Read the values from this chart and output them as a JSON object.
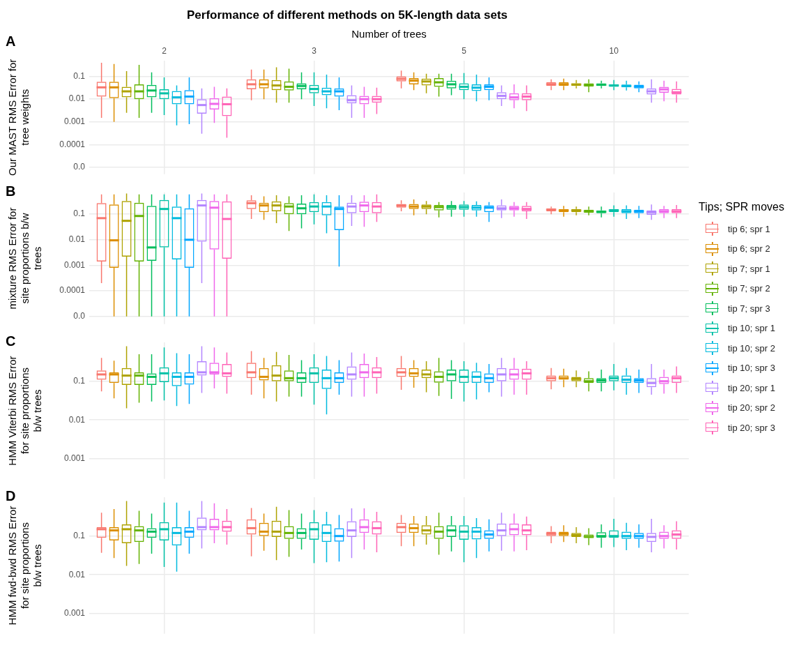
{
  "chart_data": [
    {
      "type": "box",
      "title": "Performance of different methods on 5K-length data sets",
      "xlabel": "Number of trees",
      "ylabel": "Our MAST RMS Error for tree weights",
      "annotations": [
        "A"
      ],
      "categories": [
        "2",
        "3",
        "5",
        "10"
      ],
      "log": "y",
      "grid": true,
      "ylim": [
        5e-06,
        0.5
      ],
      "yticks": [
        {
          "value": 1e-05,
          "label": "0.0"
        },
        0.0001,
        0.001,
        0.01,
        0.1
      ],
      "series": [
        {
          "color": "#f8766d",
          "boxes": [
            {
              "low": 0.0015,
              "q1": 0.013,
              "median": 0.033,
              "q3": 0.058,
              "high": 0.4
            },
            {
              "low": 0.009,
              "q1": 0.027,
              "median": 0.045,
              "q3": 0.075,
              "high": 0.2
            },
            {
              "low": 0.03,
              "q1": 0.06,
              "median": 0.078,
              "q3": 0.1,
              "high": 0.18
            },
            {
              "low": 0.025,
              "q1": 0.038,
              "median": 0.045,
              "q3": 0.055,
              "high": 0.075
            }
          ]
        },
        {
          "color": "#db8e00",
          "boxes": [
            {
              "low": 0.001,
              "q1": 0.011,
              "median": 0.033,
              "q3": 0.058,
              "high": 0.35
            },
            {
              "low": 0.01,
              "q1": 0.03,
              "median": 0.045,
              "q3": 0.075,
              "high": 0.2
            },
            {
              "low": 0.025,
              "q1": 0.045,
              "median": 0.065,
              "q3": 0.085,
              "high": 0.15
            },
            {
              "low": 0.025,
              "q1": 0.038,
              "median": 0.045,
              "q3": 0.055,
              "high": 0.08
            }
          ]
        },
        {
          "color": "#aea200",
          "boxes": [
            {
              "low": 0.0025,
              "q1": 0.012,
              "median": 0.022,
              "q3": 0.035,
              "high": 0.17
            },
            {
              "low": 0.007,
              "q1": 0.025,
              "median": 0.04,
              "q3": 0.07,
              "high": 0.25
            },
            {
              "low": 0.018,
              "q1": 0.04,
              "median": 0.06,
              "q3": 0.08,
              "high": 0.13
            },
            {
              "low": 0.03,
              "q1": 0.038,
              "median": 0.044,
              "q3": 0.05,
              "high": 0.07
            }
          ]
        },
        {
          "color": "#64b200",
          "boxes": [
            {
              "low": 0.0015,
              "q1": 0.01,
              "median": 0.022,
              "q3": 0.045,
              "high": 0.32
            },
            {
              "low": 0.007,
              "q1": 0.024,
              "median": 0.035,
              "q3": 0.06,
              "high": 0.22
            },
            {
              "low": 0.013,
              "q1": 0.035,
              "median": 0.055,
              "q3": 0.085,
              "high": 0.13
            },
            {
              "low": 0.02,
              "q1": 0.036,
              "median": 0.042,
              "q3": 0.05,
              "high": 0.075
            }
          ]
        },
        {
          "color": "#00bd5c",
          "boxes": [
            {
              "low": 0.0025,
              "q1": 0.012,
              "median": 0.024,
              "q3": 0.042,
              "high": 0.15
            },
            {
              "low": 0.01,
              "q1": 0.027,
              "median": 0.038,
              "q3": 0.05,
              "high": 0.15
            },
            {
              "low": 0.015,
              "q1": 0.03,
              "median": 0.045,
              "q3": 0.065,
              "high": 0.13
            },
            {
              "low": 0.03,
              "q1": 0.038,
              "median": 0.043,
              "q3": 0.05,
              "high": 0.065
            }
          ]
        },
        {
          "color": "#00c1a7",
          "boxes": [
            {
              "low": 0.002,
              "q1": 0.01,
              "median": 0.018,
              "q3": 0.027,
              "high": 0.09
            },
            {
              "low": 0.005,
              "q1": 0.018,
              "median": 0.028,
              "q3": 0.042,
              "high": 0.15
            },
            {
              "low": 0.01,
              "q1": 0.025,
              "median": 0.035,
              "q3": 0.05,
              "high": 0.14
            },
            {
              "low": 0.025,
              "q1": 0.035,
              "median": 0.04,
              "q3": 0.045,
              "high": 0.07
            }
          ]
        },
        {
          "color": "#00bade",
          "boxes": [
            {
              "low": 0.0007,
              "q1": 0.006,
              "median": 0.012,
              "q3": 0.023,
              "high": 0.04
            },
            {
              "low": 0.004,
              "q1": 0.015,
              "median": 0.022,
              "q3": 0.032,
              "high": 0.12
            },
            {
              "low": 0.008,
              "q1": 0.023,
              "median": 0.032,
              "q3": 0.045,
              "high": 0.12
            },
            {
              "low": 0.024,
              "q1": 0.033,
              "median": 0.038,
              "q3": 0.044,
              "high": 0.065
            }
          ]
        },
        {
          "color": "#00a6ff",
          "boxes": [
            {
              "low": 0.0008,
              "q1": 0.006,
              "median": 0.013,
              "q3": 0.025,
              "high": 0.09
            },
            {
              "low": 0.0033,
              "q1": 0.013,
              "median": 0.022,
              "q3": 0.03,
              "high": 0.09
            },
            {
              "low": 0.009,
              "q1": 0.025,
              "median": 0.035,
              "q3": 0.045,
              "high": 0.09
            },
            {
              "low": 0.02,
              "q1": 0.03,
              "median": 0.036,
              "q3": 0.043,
              "high": 0.06
            }
          ]
        },
        {
          "color": "#b385ff",
          "boxes": [
            {
              "low": 0.0003,
              "q1": 0.0023,
              "median": 0.0055,
              "q3": 0.01,
              "high": 0.03
            },
            {
              "low": 0.0015,
              "q1": 0.0065,
              "median": 0.009,
              "q3": 0.015,
              "high": 0.04
            },
            {
              "low": 0.005,
              "q1": 0.01,
              "median": 0.014,
              "q3": 0.02,
              "high": 0.04
            },
            {
              "low": 0.007,
              "q1": 0.016,
              "median": 0.022,
              "q3": 0.03,
              "high": 0.075
            }
          ]
        },
        {
          "color": "#ef67eb",
          "boxes": [
            {
              "low": 0.0009,
              "q1": 0.0035,
              "median": 0.0062,
              "q3": 0.011,
              "high": 0.035
            },
            {
              "low": 0.0015,
              "q1": 0.006,
              "median": 0.01,
              "q3": 0.014,
              "high": 0.035
            },
            {
              "low": 0.004,
              "q1": 0.009,
              "median": 0.012,
              "q3": 0.018,
              "high": 0.045
            },
            {
              "low": 0.008,
              "q1": 0.019,
              "median": 0.027,
              "q3": 0.035,
              "high": 0.065
            }
          ]
        },
        {
          "color": "#ff63b6",
          "boxes": [
            {
              "low": 0.0002,
              "q1": 0.0018,
              "median": 0.006,
              "q3": 0.013,
              "high": 0.03
            },
            {
              "low": 0.0022,
              "q1": 0.007,
              "median": 0.01,
              "q3": 0.014,
              "high": 0.032
            },
            {
              "low": 0.003,
              "q1": 0.009,
              "median": 0.013,
              "q3": 0.018,
              "high": 0.04
            },
            {
              "low": 0.007,
              "q1": 0.016,
              "median": 0.02,
              "q3": 0.028,
              "high": 0.06
            }
          ]
        }
      ],
      "tick_labels": true
    },
    {
      "type": "box",
      "ylabel": "mixture RMS Error for site proportions b/w trees",
      "annotations": [
        "B"
      ],
      "categories": [
        "2",
        "3",
        "5",
        "10"
      ],
      "log": "y",
      "grid": true,
      "legend": "right",
      "legend_title": "Tips; SPR moves",
      "tick_labels": "y",
      "ylim": [
        5e-06,
        0.7
      ],
      "yticks": [
        {
          "value": 1e-05,
          "label": "0.0"
        },
        0.0001,
        0.001,
        0.01,
        0.1
      ],
      "series": [
        {
          "name": "tip 6; spr 1",
          "color": "#f8766d",
          "boxes": [
            {
              "low": 0.0002,
              "q1": 0.0014,
              "median": 0.07,
              "q3": 0.27,
              "high": 0.6
            },
            {
              "low": 0.065,
              "q1": 0.16,
              "median": 0.27,
              "q3": 0.35,
              "high": 0.55
            },
            {
              "low": 0.13,
              "q1": 0.18,
              "median": 0.22,
              "q3": 0.25,
              "high": 0.35
            },
            {
              "low": 0.1,
              "q1": 0.13,
              "median": 0.15,
              "q3": 0.17,
              "high": 0.2
            }
          ]
        },
        {
          "name": "tip 6; spr 2",
          "color": "#db8e00",
          "boxes": [
            {
              "low": 1e-05,
              "q1": 0.0008,
              "median": 0.0095,
              "q3": 0.24,
              "high": 0.6
            },
            {
              "low": 0.06,
              "q1": 0.12,
              "median": 0.22,
              "q3": 0.28,
              "high": 0.5
            },
            {
              "low": 0.09,
              "q1": 0.16,
              "median": 0.2,
              "q3": 0.25,
              "high": 0.38
            },
            {
              "low": 0.08,
              "q1": 0.12,
              "median": 0.14,
              "q3": 0.16,
              "high": 0.21
            }
          ]
        },
        {
          "name": "tip 7; spr 1",
          "color": "#aea200",
          "boxes": [
            {
              "low": 1e-05,
              "q1": 0.0022,
              "median": 0.055,
              "q3": 0.33,
              "high": 0.65
            },
            {
              "low": 0.045,
              "q1": 0.13,
              "median": 0.22,
              "q3": 0.32,
              "high": 0.55
            },
            {
              "low": 0.1,
              "q1": 0.16,
              "median": 0.2,
              "q3": 0.24,
              "high": 0.33
            },
            {
              "low": 0.09,
              "q1": 0.12,
              "median": 0.14,
              "q3": 0.16,
              "high": 0.2
            }
          ]
        },
        {
          "name": "tip 7; spr 2",
          "color": "#64b200",
          "boxes": [
            {
              "low": 1e-05,
              "q1": 0.0014,
              "median": 0.085,
              "q3": 0.28,
              "high": 0.6
            },
            {
              "low": 0.022,
              "q1": 0.1,
              "median": 0.2,
              "q3": 0.27,
              "high": 0.5
            },
            {
              "low": 0.075,
              "q1": 0.14,
              "median": 0.19,
              "q3": 0.23,
              "high": 0.3
            },
            {
              "low": 0.09,
              "q1": 0.115,
              "median": 0.13,
              "q3": 0.15,
              "high": 0.2
            }
          ]
        },
        {
          "name": "tip 7; spr 3",
          "color": "#00bd5c",
          "boxes": [
            {
              "low": 1e-05,
              "q1": 0.0015,
              "median": 0.005,
              "q3": 0.21,
              "high": 0.6
            },
            {
              "low": 0.028,
              "q1": 0.1,
              "median": 0.17,
              "q3": 0.26,
              "high": 0.55
            },
            {
              "low": 0.08,
              "q1": 0.15,
              "median": 0.19,
              "q3": 0.23,
              "high": 0.33
            },
            {
              "low": 0.075,
              "q1": 0.11,
              "median": 0.125,
              "q3": 0.14,
              "high": 0.2
            }
          ]
        },
        {
          "name": "tip 10; spr 1",
          "color": "#00c1a7",
          "boxes": [
            {
              "low": 1e-05,
              "q1": 0.005,
              "median": 0.16,
              "q3": 0.36,
              "high": 0.6
            },
            {
              "low": 0.04,
              "q1": 0.12,
              "median": 0.2,
              "q3": 0.3,
              "high": 0.6
            },
            {
              "low": 0.08,
              "q1": 0.15,
              "median": 0.19,
              "q3": 0.24,
              "high": 0.33
            },
            {
              "low": 0.08,
              "q1": 0.12,
              "median": 0.14,
              "q3": 0.16,
              "high": 0.22
            }
          ]
        },
        {
          "name": "tip 10; spr 2",
          "color": "#00bade",
          "boxes": [
            {
              "low": 1e-05,
              "q1": 0.0017,
              "median": 0.07,
              "q3": 0.2,
              "high": 0.6
            },
            {
              "low": 0.018,
              "q1": 0.09,
              "median": 0.2,
              "q3": 0.3,
              "high": 0.55
            },
            {
              "low": 0.08,
              "q1": 0.14,
              "median": 0.18,
              "q3": 0.23,
              "high": 0.32
            },
            {
              "low": 0.065,
              "q1": 0.11,
              "median": 0.13,
              "q3": 0.16,
              "high": 0.22
            }
          ]
        },
        {
          "name": "tip 10; spr 3",
          "color": "#00a6ff",
          "boxes": [
            {
              "low": 1e-05,
              "q1": 0.0008,
              "median": 0.01,
              "q3": 0.17,
              "high": 0.6
            },
            {
              "low": 0.0009,
              "q1": 0.024,
              "median": 0.16,
              "q3": 0.2,
              "high": 0.55
            },
            {
              "low": 0.05,
              "q1": 0.12,
              "median": 0.18,
              "q3": 0.22,
              "high": 0.3
            },
            {
              "low": 0.07,
              "q1": 0.11,
              "median": 0.13,
              "q3": 0.15,
              "high": 0.21
            }
          ]
        },
        {
          "name": "tip 20; spr 1",
          "color": "#b385ff",
          "boxes": [
            {
              "low": 0.0002,
              "q1": 0.0085,
              "median": 0.22,
              "q3": 0.36,
              "high": 0.65
            },
            {
              "low": 0.035,
              "q1": 0.11,
              "median": 0.2,
              "q3": 0.28,
              "high": 0.55
            },
            {
              "low": 0.07,
              "q1": 0.14,
              "median": 0.17,
              "q3": 0.22,
              "high": 0.38
            },
            {
              "low": 0.06,
              "q1": 0.095,
              "median": 0.12,
              "q3": 0.14,
              "high": 0.24
            }
          ]
        },
        {
          "name": "tip 20; spr 2",
          "color": "#ef67eb",
          "boxes": [
            {
              "low": 1e-05,
              "q1": 0.0042,
              "median": 0.18,
              "q3": 0.33,
              "high": 0.6
            },
            {
              "low": 0.032,
              "q1": 0.12,
              "median": 0.22,
              "q3": 0.31,
              "high": 0.55
            },
            {
              "low": 0.08,
              "q1": 0.14,
              "median": 0.17,
              "q3": 0.21,
              "high": 0.3
            },
            {
              "low": 0.07,
              "q1": 0.11,
              "median": 0.13,
              "q3": 0.16,
              "high": 0.21
            }
          ]
        },
        {
          "name": "tip 20; spr 3",
          "color": "#ff63b6",
          "boxes": [
            {
              "low": 1e-05,
              "q1": 0.0018,
              "median": 0.065,
              "q3": 0.32,
              "high": 0.6
            },
            {
              "low": 0.05,
              "q1": 0.11,
              "median": 0.2,
              "q3": 0.3,
              "high": 0.6
            },
            {
              "low": 0.065,
              "q1": 0.13,
              "median": 0.16,
              "q3": 0.21,
              "high": 0.3
            },
            {
              "low": 0.07,
              "q1": 0.11,
              "median": 0.13,
              "q3": 0.16,
              "high": 0.23
            }
          ]
        }
      ]
    },
    {
      "type": "box",
      "ylabel": "HMM Viterbi RMS Error for site proportions b/w trees",
      "annotations": [
        "C"
      ],
      "categories": [
        "2",
        "3",
        "5",
        "10"
      ],
      "log": "y",
      "grid": true,
      "tick_labels": "y",
      "ylim": [
        0.0003,
        1
      ],
      "yticks": [
        0.001,
        0.01,
        0.1
      ],
      "series": [
        {
          "color": "#f8766d",
          "boxes": [
            {
              "low": 0.055,
              "q1": 0.11,
              "median": 0.15,
              "q3": 0.19,
              "high": 0.4
            },
            {
              "low": 0.045,
              "q1": 0.12,
              "median": 0.17,
              "q3": 0.3,
              "high": 0.6
            },
            {
              "low": 0.06,
              "q1": 0.13,
              "median": 0.17,
              "q3": 0.22,
              "high": 0.45
            },
            {
              "low": 0.062,
              "q1": 0.1,
              "median": 0.12,
              "q3": 0.14,
              "high": 0.22
            }
          ]
        },
        {
          "color": "#db8e00",
          "boxes": [
            {
              "low": 0.036,
              "q1": 0.09,
              "median": 0.15,
              "q3": 0.17,
              "high": 0.34
            },
            {
              "low": 0.036,
              "q1": 0.105,
              "median": 0.13,
              "q3": 0.22,
              "high": 0.4
            },
            {
              "low": 0.068,
              "q1": 0.13,
              "median": 0.16,
              "q3": 0.22,
              "high": 0.35
            },
            {
              "low": 0.07,
              "q1": 0.11,
              "median": 0.12,
              "q3": 0.14,
              "high": 0.21
            }
          ]
        },
        {
          "color": "#aea200",
          "boxes": [
            {
              "low": 0.02,
              "q1": 0.08,
              "median": 0.14,
              "q3": 0.22,
              "high": 0.8
            },
            {
              "low": 0.03,
              "q1": 0.1,
              "median": 0.14,
              "q3": 0.26,
              "high": 0.57
            },
            {
              "low": 0.052,
              "q1": 0.12,
              "median": 0.15,
              "q3": 0.2,
              "high": 0.33
            },
            {
              "low": 0.07,
              "q1": 0.1,
              "median": 0.115,
              "q3": 0.13,
              "high": 0.19
            }
          ]
        },
        {
          "color": "#64b200",
          "boxes": [
            {
              "low": 0.028,
              "q1": 0.08,
              "median": 0.14,
              "q3": 0.17,
              "high": 0.5
            },
            {
              "low": 0.04,
              "q1": 0.1,
              "median": 0.12,
              "q3": 0.19,
              "high": 0.48
            },
            {
              "low": 0.042,
              "q1": 0.092,
              "median": 0.13,
              "q3": 0.18,
              "high": 0.4
            },
            {
              "low": 0.055,
              "q1": 0.09,
              "median": 0.1,
              "q3": 0.12,
              "high": 0.18
            }
          ]
        },
        {
          "color": "#00bd5c",
          "boxes": [
            {
              "low": 0.03,
              "q1": 0.08,
              "median": 0.13,
              "q3": 0.16,
              "high": 0.5
            },
            {
              "low": 0.04,
              "q1": 0.09,
              "median": 0.12,
              "q3": 0.17,
              "high": 0.35
            },
            {
              "low": 0.035,
              "q1": 0.1,
              "median": 0.15,
              "q3": 0.2,
              "high": 0.35
            },
            {
              "low": 0.055,
              "q1": 0.09,
              "median": 0.105,
              "q3": 0.12,
              "high": 0.2
            }
          ]
        },
        {
          "color": "#00c1a7",
          "boxes": [
            {
              "low": 0.032,
              "q1": 0.095,
              "median": 0.16,
              "q3": 0.23,
              "high": 0.75
            },
            {
              "low": 0.025,
              "q1": 0.09,
              "median": 0.16,
              "q3": 0.23,
              "high": 0.5
            },
            {
              "low": 0.03,
              "q1": 0.09,
              "median": 0.13,
              "q3": 0.2,
              "high": 0.33
            },
            {
              "low": 0.058,
              "q1": 0.1,
              "median": 0.12,
              "q3": 0.14,
              "high": 0.28
            }
          ]
        },
        {
          "color": "#00bade",
          "boxes": [
            {
              "low": 0.023,
              "q1": 0.075,
              "median": 0.13,
              "q3": 0.17,
              "high": 0.53
            },
            {
              "low": 0.014,
              "q1": 0.063,
              "median": 0.12,
              "q3": 0.2,
              "high": 0.45
            },
            {
              "low": 0.034,
              "q1": 0.09,
              "median": 0.13,
              "q3": 0.18,
              "high": 0.3
            },
            {
              "low": 0.045,
              "q1": 0.09,
              "median": 0.11,
              "q3": 0.14,
              "high": 0.22
            }
          ]
        },
        {
          "color": "#00a6ff",
          "boxes": [
            {
              "low": 0.026,
              "q1": 0.082,
              "median": 0.13,
              "q3": 0.17,
              "high": 0.5
            },
            {
              "low": 0.045,
              "q1": 0.09,
              "median": 0.12,
              "q3": 0.17,
              "high": 0.35
            },
            {
              "low": 0.052,
              "q1": 0.09,
              "median": 0.12,
              "q3": 0.16,
              "high": 0.28
            },
            {
              "low": 0.05,
              "q1": 0.09,
              "median": 0.105,
              "q3": 0.12,
              "high": 0.2
            }
          ]
        },
        {
          "color": "#b385ff",
          "boxes": [
            {
              "low": 0.05,
              "q1": 0.14,
              "median": 0.17,
              "q3": 0.33,
              "high": 0.8
            },
            {
              "low": 0.04,
              "q1": 0.11,
              "median": 0.15,
              "q3": 0.24,
              "high": 0.55
            },
            {
              "low": 0.04,
              "q1": 0.1,
              "median": 0.15,
              "q3": 0.22,
              "high": 0.4
            },
            {
              "low": 0.045,
              "q1": 0.07,
              "median": 0.09,
              "q3": 0.12,
              "high": 0.28
            }
          ]
        },
        {
          "color": "#ef67eb",
          "boxes": [
            {
              "low": 0.065,
              "q1": 0.15,
              "median": 0.17,
              "q3": 0.3,
              "high": 0.75
            },
            {
              "low": 0.04,
              "q1": 0.12,
              "median": 0.17,
              "q3": 0.28,
              "high": 0.52
            },
            {
              "low": 0.045,
              "q1": 0.11,
              "median": 0.15,
              "q3": 0.21,
              "high": 0.4
            },
            {
              "low": 0.048,
              "q1": 0.085,
              "median": 0.1,
              "q3": 0.13,
              "high": 0.2
            }
          ]
        },
        {
          "color": "#ff63b6",
          "boxes": [
            {
              "low": 0.048,
              "q1": 0.13,
              "median": 0.16,
              "q3": 0.28,
              "high": 0.55
            },
            {
              "low": 0.048,
              "q1": 0.12,
              "median": 0.17,
              "q3": 0.23,
              "high": 0.42
            },
            {
              "low": 0.045,
              "q1": 0.11,
              "median": 0.16,
              "q3": 0.21,
              "high": 0.33
            },
            {
              "low": 0.05,
              "q1": 0.09,
              "median": 0.12,
              "q3": 0.14,
              "high": 0.24
            }
          ]
        }
      ]
    },
    {
      "type": "box",
      "ylabel": "HMM fwd-bwd RMS Error for site proportions b/w trees",
      "annotations": [
        "D"
      ],
      "categories": [
        "2",
        "3",
        "5",
        "10"
      ],
      "log": "y",
      "grid": true,
      "tick_labels": "y",
      "ylim": [
        0.0003,
        1
      ],
      "yticks": [
        0.001,
        0.01,
        0.1
      ],
      "series": [
        {
          "color": "#f8766d",
          "boxes": [
            {
              "low": 0.037,
              "q1": 0.09,
              "median": 0.15,
              "q3": 0.17,
              "high": 0.4
            },
            {
              "low": 0.03,
              "q1": 0.11,
              "median": 0.16,
              "q3": 0.27,
              "high": 0.53
            },
            {
              "low": 0.055,
              "q1": 0.12,
              "median": 0.17,
              "q3": 0.22,
              "high": 0.35
            },
            {
              "low": 0.065,
              "q1": 0.1,
              "median": 0.115,
              "q3": 0.13,
              "high": 0.18
            }
          ]
        },
        {
          "color": "#db8e00",
          "boxes": [
            {
              "low": 0.027,
              "q1": 0.077,
              "median": 0.14,
              "q3": 0.17,
              "high": 0.5
            },
            {
              "low": 0.042,
              "q1": 0.1,
              "median": 0.13,
              "q3": 0.22,
              "high": 0.38
            },
            {
              "low": 0.055,
              "q1": 0.12,
              "median": 0.16,
              "q3": 0.21,
              "high": 0.33
            },
            {
              "low": 0.07,
              "q1": 0.1,
              "median": 0.115,
              "q3": 0.13,
              "high": 0.19
            }
          ]
        },
        {
          "color": "#aea200",
          "boxes": [
            {
              "low": 0.017,
              "q1": 0.065,
              "median": 0.15,
              "q3": 0.2,
              "high": 0.8
            },
            {
              "low": 0.024,
              "q1": 0.095,
              "median": 0.13,
              "q3": 0.25,
              "high": 0.57
            },
            {
              "low": 0.06,
              "q1": 0.11,
              "median": 0.14,
              "q3": 0.19,
              "high": 0.33
            },
            {
              "low": 0.065,
              "q1": 0.095,
              "median": 0.105,
              "q3": 0.12,
              "high": 0.17
            }
          ]
        },
        {
          "color": "#64b200",
          "boxes": [
            {
              "low": 0.019,
              "q1": 0.07,
              "median": 0.14,
              "q3": 0.18,
              "high": 0.45
            },
            {
              "low": 0.029,
              "q1": 0.085,
              "median": 0.12,
              "q3": 0.18,
              "high": 0.47
            },
            {
              "low": 0.033,
              "q1": 0.085,
              "median": 0.13,
              "q3": 0.18,
              "high": 0.4
            },
            {
              "low": 0.058,
              "q1": 0.09,
              "median": 0.095,
              "q3": 0.11,
              "high": 0.16
            }
          ]
        },
        {
          "color": "#00bd5c",
          "boxes": [
            {
              "low": 0.035,
              "q1": 0.09,
              "median": 0.13,
              "q3": 0.16,
              "high": 0.38
            },
            {
              "low": 0.045,
              "q1": 0.085,
              "median": 0.12,
              "q3": 0.16,
              "high": 0.38
            },
            {
              "low": 0.04,
              "q1": 0.095,
              "median": 0.14,
              "q3": 0.19,
              "high": 0.33
            },
            {
              "low": 0.05,
              "q1": 0.09,
              "median": 0.1,
              "q3": 0.125,
              "high": 0.2
            }
          ]
        },
        {
          "color": "#00c1a7",
          "boxes": [
            {
              "low": 0.016,
              "q1": 0.077,
              "median": 0.15,
              "q3": 0.23,
              "high": 0.73
            },
            {
              "low": 0.02,
              "q1": 0.08,
              "median": 0.15,
              "q3": 0.23,
              "high": 0.47
            },
            {
              "low": 0.021,
              "q1": 0.08,
              "median": 0.13,
              "q3": 0.19,
              "high": 0.33
            },
            {
              "low": 0.052,
              "q1": 0.09,
              "median": 0.1,
              "q3": 0.14,
              "high": 0.28
            }
          ]
        },
        {
          "color": "#00bade",
          "boxes": [
            {
              "low": 0.012,
              "q1": 0.057,
              "median": 0.12,
              "q3": 0.17,
              "high": 0.73
            },
            {
              "low": 0.021,
              "q1": 0.07,
              "median": 0.12,
              "q3": 0.2,
              "high": 0.42
            },
            {
              "low": 0.027,
              "q1": 0.082,
              "median": 0.13,
              "q3": 0.17,
              "high": 0.29
            },
            {
              "low": 0.043,
              "q1": 0.085,
              "median": 0.1,
              "q3": 0.13,
              "high": 0.22
            }
          ]
        },
        {
          "color": "#00a6ff",
          "boxes": [
            {
              "low": 0.035,
              "q1": 0.09,
              "median": 0.13,
              "q3": 0.17,
              "high": 0.45
            },
            {
              "low": 0.022,
              "q1": 0.072,
              "median": 0.1,
              "q3": 0.16,
              "high": 0.35
            },
            {
              "low": 0.04,
              "q1": 0.085,
              "median": 0.11,
              "q3": 0.14,
              "high": 0.27
            },
            {
              "low": 0.05,
              "q1": 0.085,
              "median": 0.1,
              "q3": 0.12,
              "high": 0.2
            }
          ]
        },
        {
          "color": "#b385ff",
          "boxes": [
            {
              "low": 0.048,
              "q1": 0.14,
              "median": 0.17,
              "q3": 0.3,
              "high": 0.8
            },
            {
              "low": 0.027,
              "q1": 0.095,
              "median": 0.14,
              "q3": 0.24,
              "high": 0.52
            },
            {
              "low": 0.042,
              "q1": 0.1,
              "median": 0.14,
              "q3": 0.21,
              "high": 0.4
            },
            {
              "low": 0.038,
              "q1": 0.07,
              "median": 0.095,
              "q3": 0.12,
              "high": 0.28
            }
          ]
        },
        {
          "color": "#ef67eb",
          "boxes": [
            {
              "low": 0.065,
              "q1": 0.14,
              "median": 0.17,
              "q3": 0.28,
              "high": 0.7
            },
            {
              "low": 0.045,
              "q1": 0.12,
              "median": 0.17,
              "q3": 0.27,
              "high": 0.52
            },
            {
              "low": 0.04,
              "q1": 0.105,
              "median": 0.15,
              "q3": 0.21,
              "high": 0.38
            },
            {
              "low": 0.048,
              "q1": 0.085,
              "median": 0.1,
              "q3": 0.13,
              "high": 0.19
            }
          ]
        },
        {
          "color": "#ff63b6",
          "boxes": [
            {
              "low": 0.06,
              "q1": 0.13,
              "median": 0.17,
              "q3": 0.25,
              "high": 0.5
            },
            {
              "low": 0.038,
              "q1": 0.11,
              "median": 0.16,
              "q3": 0.24,
              "high": 0.42
            },
            {
              "low": 0.043,
              "q1": 0.105,
              "median": 0.14,
              "q3": 0.2,
              "high": 0.32
            },
            {
              "low": 0.045,
              "q1": 0.085,
              "median": 0.11,
              "q3": 0.14,
              "high": 0.24
            }
          ]
        }
      ]
    }
  ]
}
